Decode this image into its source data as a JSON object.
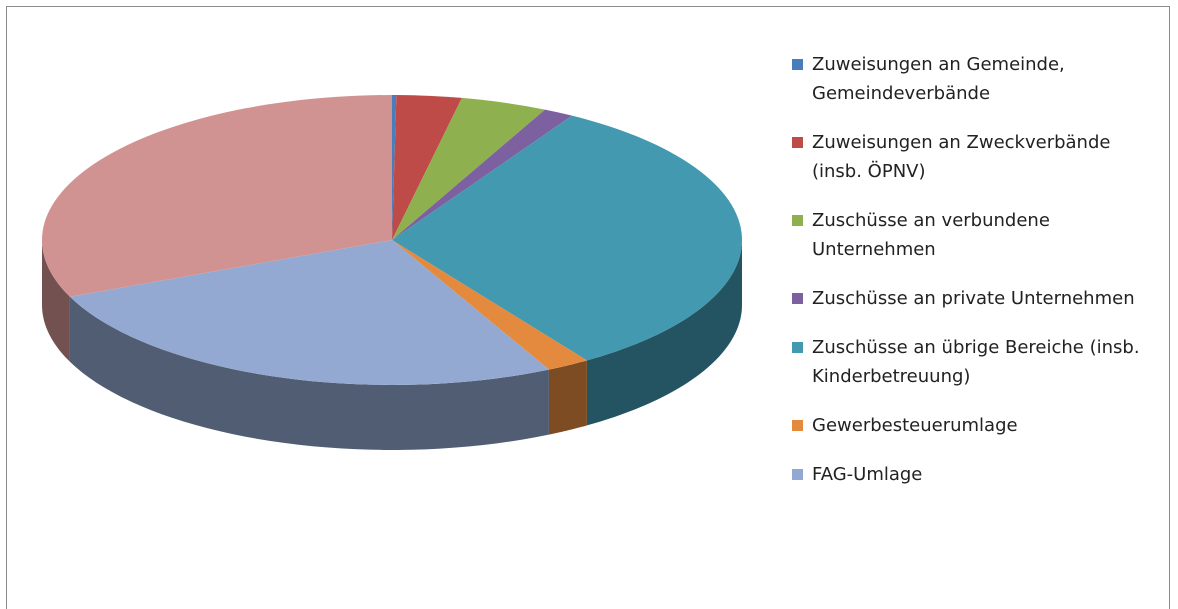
{
  "chart_data": {
    "type": "pie",
    "categories": [
      "Zuweisungen an Gemeinde, Gemeindeverbände",
      "Zuweisungen an Zweckverbände (insb. ÖPNV)",
      "Zuschüsse an verbundene Unternehmen",
      "Zuschüsse an private Unternehmen",
      "Zuschüsse an übrige Bereiche (insb. Kinderbetreuung)",
      "Gewerbesteuerumlage",
      "FAG-Umlage",
      null
    ],
    "values": [
      0.2,
      3,
      4,
      1.4,
      32,
      2,
      26,
      31.4
    ],
    "colors": [
      "#4a7ebb",
      "#be4b48",
      "#8fb04f",
      "#7d60a0",
      "#4299b0",
      "#e38a3e",
      "#94a9d1",
      "#d19392"
    ],
    "legend": "right"
  }
}
